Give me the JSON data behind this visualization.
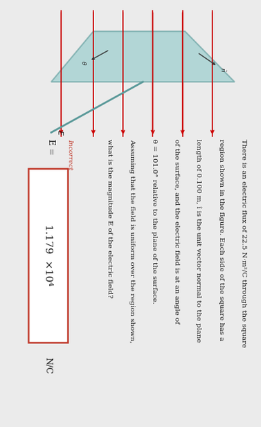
{
  "background_color": "#ebebeb",
  "text_color": "#1a1a1a",
  "box_color": "#c0392b",
  "arrow_color": "#cc0000",
  "plate_color": "#8cc8c8",
  "plate_edge_color": "#5a9999",
  "incorrect_color": "#c0392b",
  "line1": "There is an electric flux of 22.5 N·m²/C through the square",
  "line2": "region shown in the figure. Each side of the square has a",
  "line3": "length of 0.100 m, î is the unit vector normal to the plane",
  "line4": "of the surface, and the electric field is at an angle of",
  "line5": "θ = 101.0° relative to the plane of the surface.",
  "line6": "Assuming that the field is uniform over the region shown,",
  "line7": "what is the magnitude E of the electric field?",
  "E_label": "E =",
  "answer_value": "1.179  ×10⁴",
  "answer_unit": "N/C",
  "incorrect_label": "Incorrect"
}
